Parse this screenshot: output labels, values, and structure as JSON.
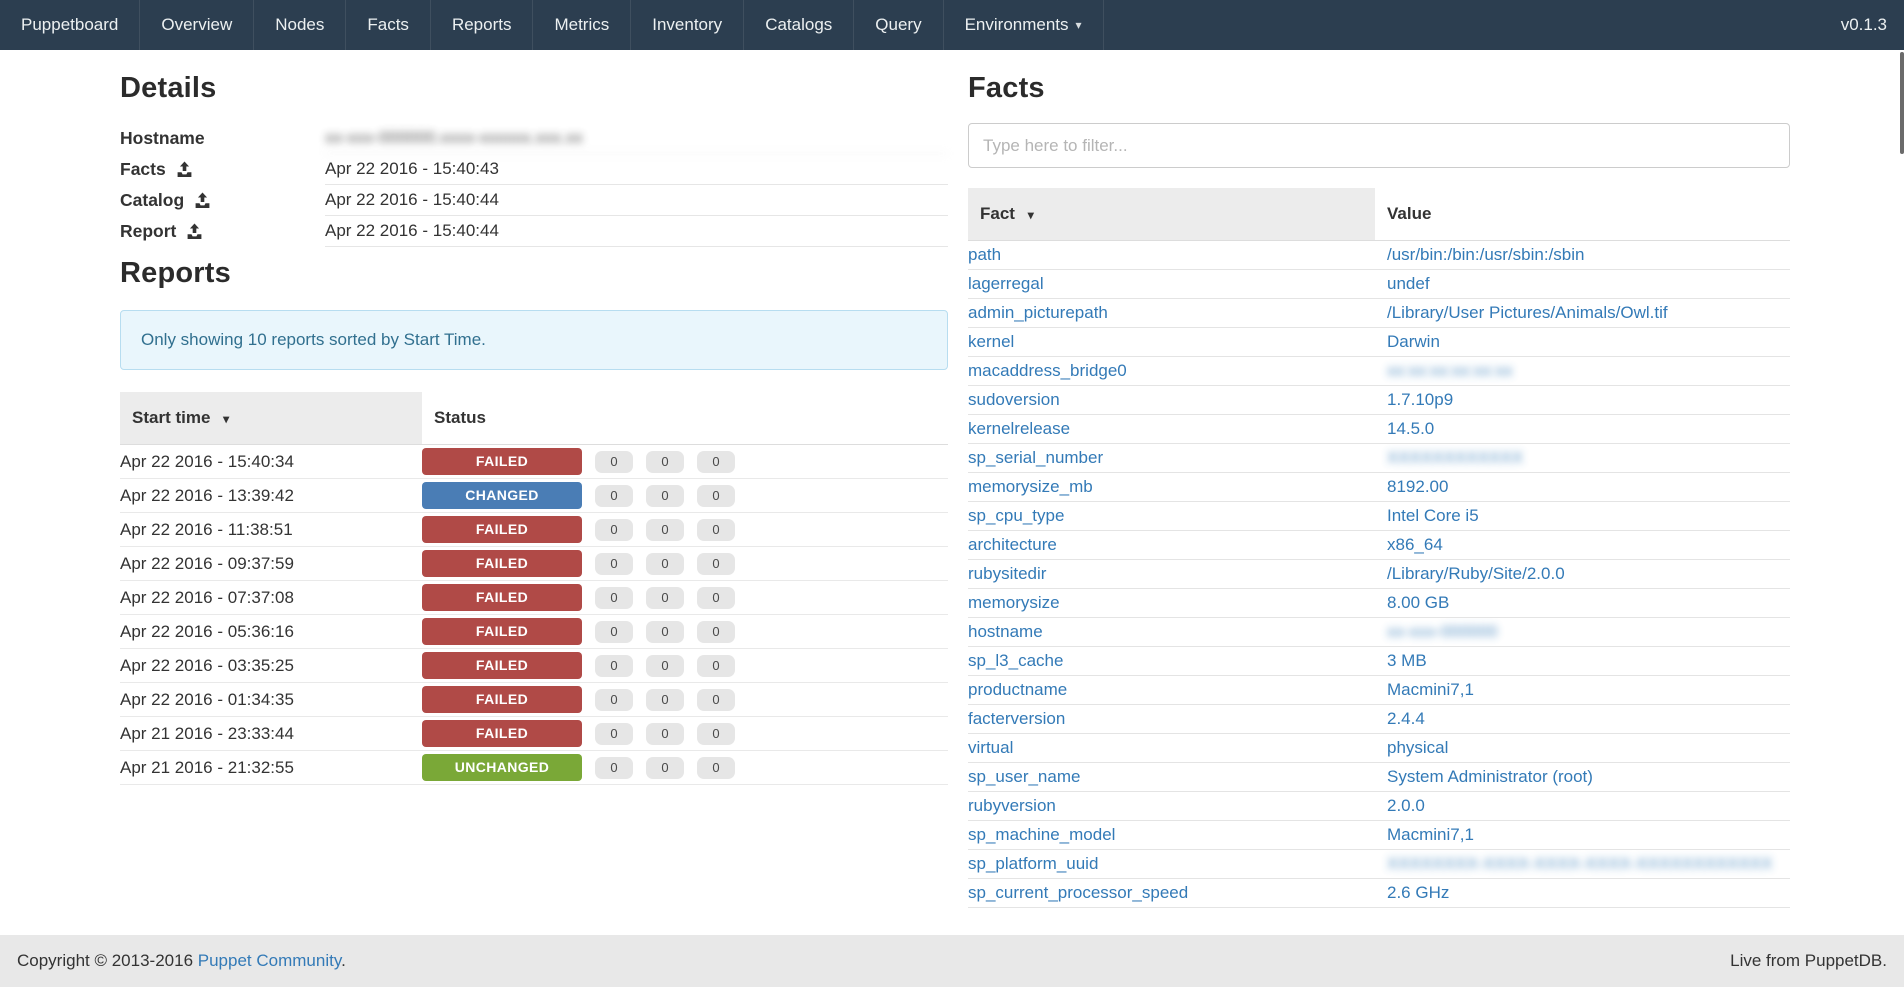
{
  "navbar": {
    "brand": "Puppetboard",
    "items": [
      "Overview",
      "Nodes",
      "Facts",
      "Reports",
      "Metrics",
      "Inventory",
      "Catalogs",
      "Query"
    ],
    "environments_label": "Environments",
    "version": "v0.1.3"
  },
  "icons": {
    "sort_desc": "▾",
    "nav_caret": "▾"
  },
  "details": {
    "title": "Details",
    "rows": [
      {
        "label": "Hostname",
        "value": "xx-xxx-000000.xxxx-xxxxxx.xxx.xx",
        "blurred": true
      },
      {
        "label": "Facts",
        "value": "Apr 22 2016 - 15:40:43",
        "blurred": false
      },
      {
        "label": "Catalog",
        "value": "Apr 22 2016 - 15:40:44",
        "blurred": false
      },
      {
        "label": "Report",
        "value": "Apr 22 2016 - 15:40:44",
        "blurred": false
      }
    ]
  },
  "reports": {
    "title": "Reports",
    "alert": "Only showing 10 reports sorted by Start Time.",
    "columns": [
      "Start time",
      "Status"
    ],
    "rows": [
      {
        "start_time": "Apr 22 2016 - 15:40:34",
        "status": "FAILED",
        "counts": [
          0,
          0,
          0
        ]
      },
      {
        "start_time": "Apr 22 2016 - 13:39:42",
        "status": "CHANGED",
        "counts": [
          0,
          0,
          0
        ]
      },
      {
        "start_time": "Apr 22 2016 - 11:38:51",
        "status": "FAILED",
        "counts": [
          0,
          0,
          0
        ]
      },
      {
        "start_time": "Apr 22 2016 - 09:37:59",
        "status": "FAILED",
        "counts": [
          0,
          0,
          0
        ]
      },
      {
        "start_time": "Apr 22 2016 - 07:37:08",
        "status": "FAILED",
        "counts": [
          0,
          0,
          0
        ]
      },
      {
        "start_time": "Apr 22 2016 - 05:36:16",
        "status": "FAILED",
        "counts": [
          0,
          0,
          0
        ]
      },
      {
        "start_time": "Apr 22 2016 - 03:35:25",
        "status": "FAILED",
        "counts": [
          0,
          0,
          0
        ]
      },
      {
        "start_time": "Apr 22 2016 - 01:34:35",
        "status": "FAILED",
        "counts": [
          0,
          0,
          0
        ]
      },
      {
        "start_time": "Apr 21 2016 - 23:33:44",
        "status": "FAILED",
        "counts": [
          0,
          0,
          0
        ]
      },
      {
        "start_time": "Apr 21 2016 - 21:32:55",
        "status": "UNCHANGED",
        "counts": [
          0,
          0,
          0
        ]
      }
    ]
  },
  "facts": {
    "title": "Facts",
    "filter_placeholder": "Type here to filter...",
    "columns": [
      "Fact",
      "Value"
    ],
    "rows": [
      {
        "fact": "path",
        "value": "/usr/bin:/bin:/usr/sbin:/sbin",
        "blurred": false
      },
      {
        "fact": "lagerregal",
        "value": "undef",
        "blurred": false
      },
      {
        "fact": "admin_picturepath",
        "value": "/Library/User Pictures/Animals/Owl.tif",
        "blurred": false
      },
      {
        "fact": "kernel",
        "value": "Darwin",
        "blurred": false
      },
      {
        "fact": "macaddress_bridge0",
        "value": "xx:xx:xx:xx:xx:xx",
        "blurred": true
      },
      {
        "fact": "sudoversion",
        "value": "1.7.10p9",
        "blurred": false
      },
      {
        "fact": "kernelrelease",
        "value": "14.5.0",
        "blurred": false
      },
      {
        "fact": "sp_serial_number",
        "value": "XXXXXXXXXXXX",
        "blurred": true
      },
      {
        "fact": "memorysize_mb",
        "value": "8192.00",
        "blurred": false
      },
      {
        "fact": "sp_cpu_type",
        "value": "Intel Core i5",
        "blurred": false
      },
      {
        "fact": "architecture",
        "value": "x86_64",
        "blurred": false
      },
      {
        "fact": "rubysitedir",
        "value": "/Library/Ruby/Site/2.0.0",
        "blurred": false
      },
      {
        "fact": "memorysize",
        "value": "8.00 GB",
        "blurred": false
      },
      {
        "fact": "hostname",
        "value": "xx-xxx-000000",
        "blurred": true
      },
      {
        "fact": "sp_l3_cache",
        "value": "3 MB",
        "blurred": false
      },
      {
        "fact": "productname",
        "value": "Macmini7,1",
        "blurred": false
      },
      {
        "fact": "facterversion",
        "value": "2.4.4",
        "blurred": false
      },
      {
        "fact": "virtual",
        "value": "physical",
        "blurred": false
      },
      {
        "fact": "sp_user_name",
        "value": "System Administrator (root)",
        "blurred": false
      },
      {
        "fact": "rubyversion",
        "value": "2.0.0",
        "blurred": false
      },
      {
        "fact": "sp_machine_model",
        "value": "Macmini7,1",
        "blurred": false
      },
      {
        "fact": "sp_platform_uuid",
        "value": "XXXXXXXX-XXXX-XXXX-XXXX-XXXXXXXXXXXX",
        "blurred": true
      },
      {
        "fact": "sp_current_processor_speed",
        "value": "2.6 GHz",
        "blurred": false
      }
    ]
  },
  "footer": {
    "copyright_prefix": "Copyright © 2013-2016 ",
    "copyright_link": "Puppet Community",
    "copyright_suffix": ".",
    "right_text": "Live from PuppetDB."
  },
  "colors": {
    "navbar_bg": "#2c3e50",
    "link_blue": "#337ab7",
    "status": {
      "FAILED": "#b04a47",
      "CHANGED": "#4a7db5",
      "UNCHANGED": "#7aa837"
    },
    "alert_bg": "#e9f6fc",
    "alert_text": "#31708f",
    "sorted_header_bg": "#ececec",
    "footer_bg": "#e8e8e8"
  }
}
